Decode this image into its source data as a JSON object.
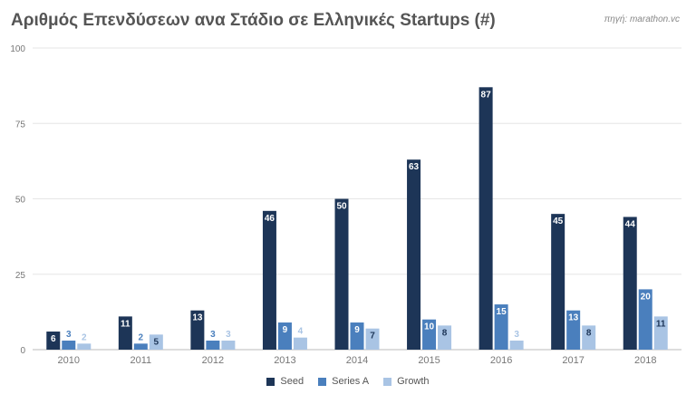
{
  "title": "Αριθμός Επενδύσεων ανα Στάδιο σε Ελληνικές Startups (#)",
  "source": "πηγή: marathon.vc",
  "colors": {
    "seed": "#1d3557",
    "series_a": "#4a7fbd",
    "growth": "#a9c4e4",
    "grid": "#e6e6e6",
    "axis_text": "#777777"
  },
  "chart_data": {
    "type": "bar",
    "title": "Αριθμός Επενδύσεων ανα Στάδιο σε Ελληνικές Startups (#)",
    "xlabel": "",
    "ylabel": "",
    "ylim": [
      0,
      100
    ],
    "yticks": [
      0,
      25,
      50,
      75,
      100
    ],
    "grid": true,
    "legend_position": "bottom",
    "categories": [
      "2010",
      "2011",
      "2012",
      "2013",
      "2014",
      "2015",
      "2016",
      "2017",
      "2018"
    ],
    "series": [
      {
        "name": "Seed",
        "color": "#1d3557",
        "values": [
          6,
          11,
          13,
          46,
          50,
          63,
          87,
          45,
          44
        ]
      },
      {
        "name": "Series A",
        "color": "#4a7fbd",
        "values": [
          3,
          2,
          3,
          9,
          9,
          10,
          15,
          13,
          20
        ]
      },
      {
        "name": "Growth",
        "color": "#a9c4e4",
        "values": [
          2,
          5,
          3,
          4,
          7,
          8,
          3,
          8,
          11
        ]
      }
    ]
  }
}
